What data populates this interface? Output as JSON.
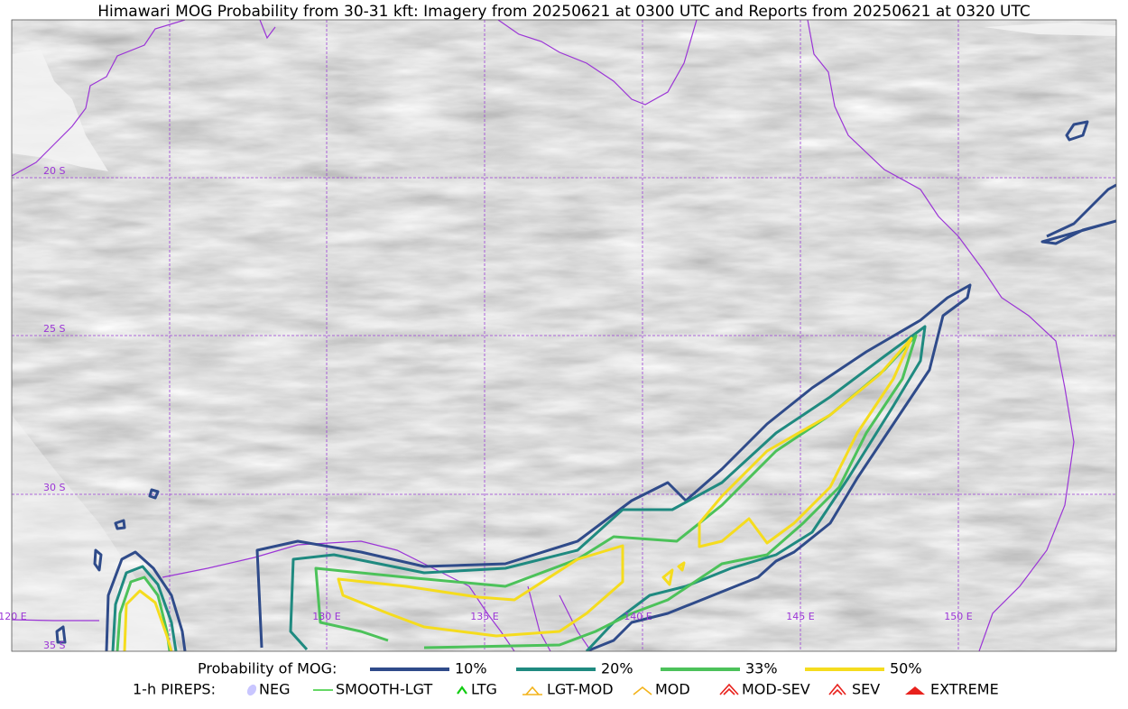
{
  "title": "Himawari MOG Probability from 30-31 kft: Imagery from 20250621 at 0300 UTC and Reports from 20250621 at 0320 UTC",
  "grid_labels": {
    "lat": [
      "20 S",
      "25 S",
      "30 S",
      "35 S"
    ],
    "lon": [
      "120 E",
      "130 E",
      "135 E",
      "140 E",
      "145 E",
      "150 E"
    ]
  },
  "legend": {
    "probability": {
      "label": "Probability of MOG:",
      "items": [
        {
          "label": "10%",
          "color": "#2f4b8a"
        },
        {
          "label": "20%",
          "color": "#1f8a80"
        },
        {
          "label": "33%",
          "color": "#4cc25a"
        },
        {
          "label": "50%",
          "color": "#f5dc1e"
        }
      ]
    },
    "pireps": {
      "label": "1-h PIREPS:",
      "items": [
        {
          "label": "NEG",
          "color": "#c9c6ff"
        },
        {
          "label": "SMOOTH-LGT",
          "color": "#33cc33"
        },
        {
          "label": "LTG",
          "color": "#11cc11"
        },
        {
          "label": "LGT-MOD",
          "color": "#f3b31a"
        },
        {
          "label": "MOD",
          "color": "#f3b31a"
        },
        {
          "label": "MOD-SEV",
          "color": "#e8211c"
        },
        {
          "label": "SEV",
          "color": "#e8211c"
        },
        {
          "label": "EXTREME",
          "color": "#e8211c"
        }
      ]
    }
  }
}
